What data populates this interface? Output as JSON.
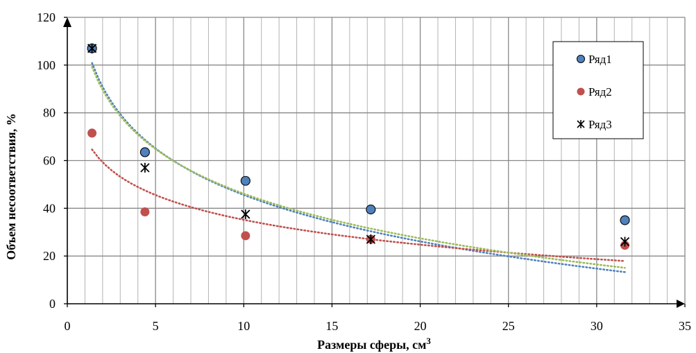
{
  "chart_data": {
    "type": "scatter",
    "xlabel": "Размеры сферы, см",
    "xlabel_sup": "3",
    "ylabel": "Объем несоответствия, %",
    "xlim": [
      0,
      35
    ],
    "ylim": [
      0,
      120
    ],
    "x_ticks": [
      0,
      5,
      10,
      15,
      20,
      25,
      30,
      35
    ],
    "y_ticks": [
      0,
      20,
      40,
      60,
      80,
      100,
      120
    ],
    "x_minor_step": 1,
    "grid": "major-and-minor",
    "legend_position": "top-right",
    "series": [
      {
        "name": "Ряд1",
        "marker": "circle",
        "color": "#4f81bd",
        "x": [
          1.4,
          4.4,
          10.1,
          17.2,
          31.6
        ],
        "y": [
          107,
          63.5,
          51.5,
          39.5,
          35
        ],
        "trendline": {
          "type": "log",
          "color": "#4f81bd",
          "a": 28.1,
          "b": 110.3,
          "x_range": [
            1.4,
            31.6
          ]
        }
      },
      {
        "name": "Ряд2",
        "marker": "circle",
        "color": "#c0504d",
        "x": [
          1.4,
          4.4,
          10.1,
          17.2,
          31.6
        ],
        "y": [
          71.5,
          38.5,
          28.5,
          27,
          24.5
        ],
        "trendline": {
          "type": "log",
          "color": "#c0504d",
          "a": 15.0,
          "b": 69.7,
          "x_range": [
            1.4,
            31.6
          ]
        }
      },
      {
        "name": "Ряд3",
        "marker": "asterisk",
        "color": "#000000",
        "x": [
          1.4,
          4.4,
          10.1,
          17.2,
          31.6
        ],
        "y": [
          107,
          57,
          37.5,
          27,
          26
        ],
        "trendline": {
          "type": "log",
          "color": "#9bbb59",
          "a": 27.0,
          "b": 108.3,
          "x_range": [
            1.4,
            31.6
          ]
        }
      }
    ]
  }
}
